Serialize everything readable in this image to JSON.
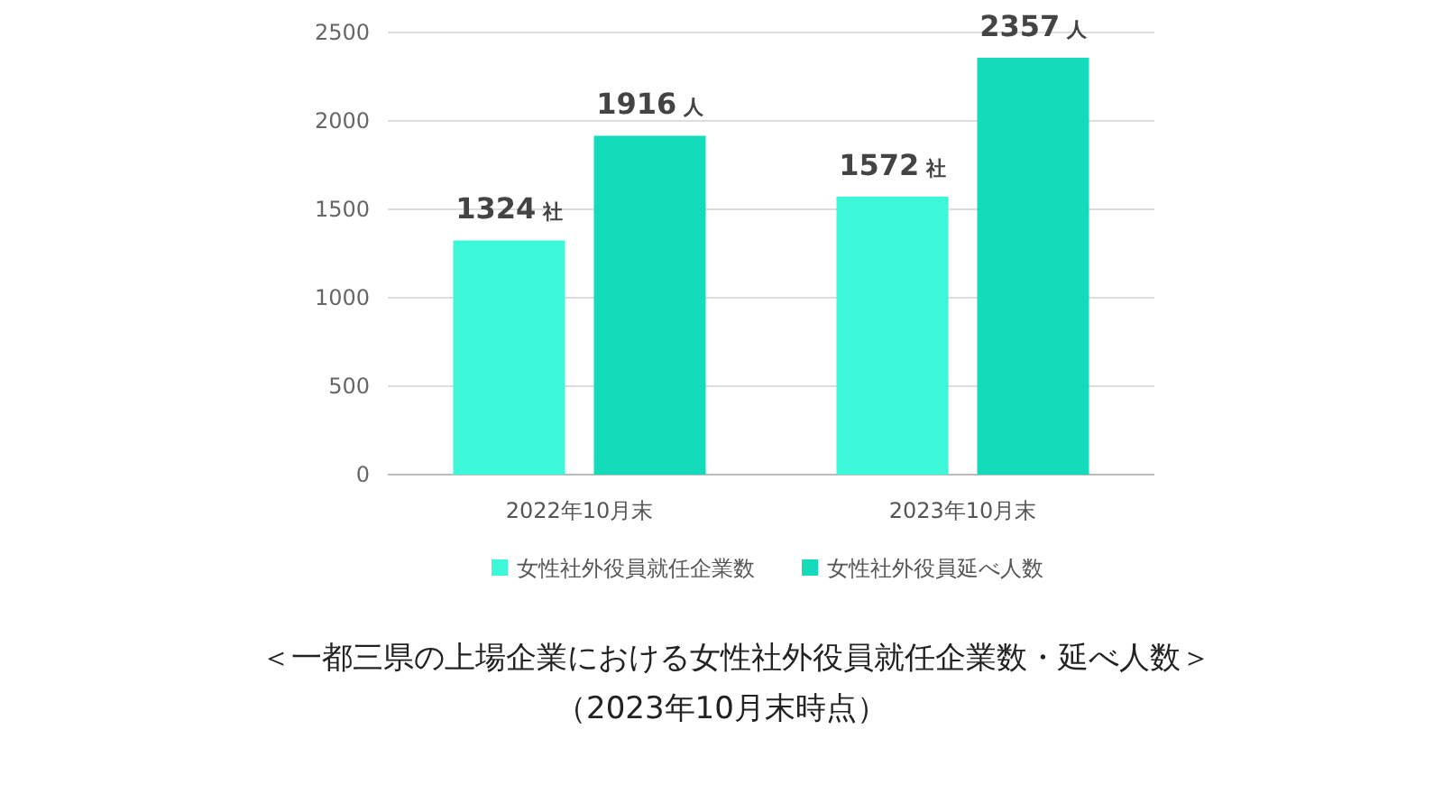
{
  "chart_data": {
    "type": "bar",
    "title": "＜一都三県の上場企業における女性社外役員就任企業数・延べ人数＞",
    "subtitle": "（2023年10月末時点）",
    "categories": [
      "2022年10月末",
      "2023年10月末"
    ],
    "series": [
      {
        "name": "女性社外役員就任企業数",
        "color": "#3cf7d8",
        "values": [
          1324,
          1572
        ],
        "value_labels": [
          "1324 社",
          "1572 社"
        ]
      },
      {
        "name": "女性社外役員延べ人数",
        "color": "#14dbb9",
        "values": [
          1916,
          2357
        ],
        "value_labels": [
          "1916 人",
          "2357 人"
        ]
      }
    ],
    "ylim": [
      0,
      2500
    ],
    "yticks": [
      0,
      500,
      1000,
      1500,
      2000,
      2500
    ],
    "grid": "y",
    "legend": "bottom"
  }
}
